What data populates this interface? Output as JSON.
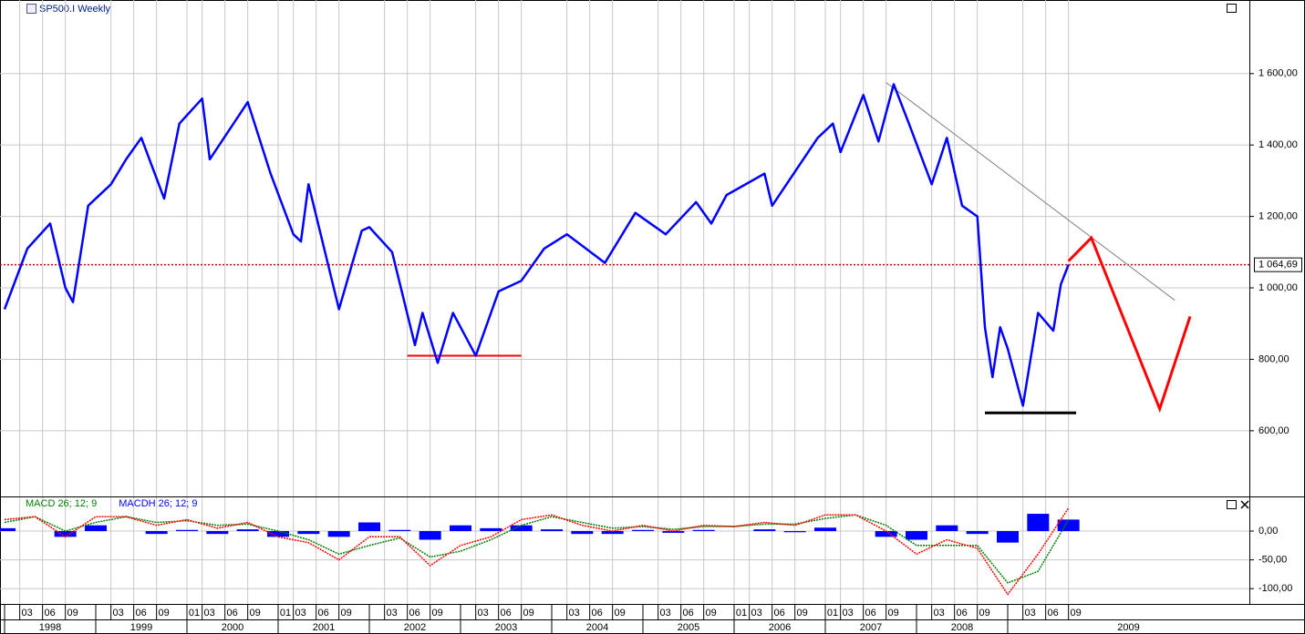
{
  "chart_data": [
    {
      "type": "line",
      "title": "SP500.I Weekly",
      "series": [
        {
          "color": "#0000ff",
          "x": [
            "1998-01",
            "1998-04",
            "1998-07",
            "1998-09",
            "1998-10",
            "1998-12",
            "1999-03",
            "1999-05",
            "1999-07",
            "1999-10",
            "1999-12",
            "2000-03",
            "2000-04",
            "2000-09",
            "2000-12",
            "2001-03",
            "2001-04",
            "2001-05",
            "2001-09",
            "2001-12",
            "2002-01",
            "2002-04",
            "2002-07",
            "2002-08",
            "2002-10",
            "2002-12",
            "2003-03",
            "2003-06",
            "2003-09",
            "2003-12",
            "2004-03",
            "2004-08",
            "2004-12",
            "2005-04",
            "2005-08",
            "2005-10",
            "2005-12",
            "2006-05",
            "2006-06",
            "2006-12",
            "2007-02",
            "2007-03",
            "2007-06",
            "2007-08",
            "2007-10",
            "2007-12",
            "2008-03",
            "2008-05",
            "2008-07",
            "2008-09",
            "2008-10",
            "2008-11",
            "2008-12",
            "2009-01",
            "2009-03",
            "2009-05",
            "2009-07",
            "2009-08",
            "2009-09"
          ],
          "values": [
            940,
            1110,
            1180,
            1000,
            960,
            1230,
            1290,
            1360,
            1420,
            1250,
            1460,
            1530,
            1360,
            1520,
            1320,
            1150,
            1130,
            1290,
            940,
            1160,
            1170,
            1100,
            840,
            930,
            790,
            930,
            810,
            990,
            1020,
            1110,
            1150,
            1070,
            1210,
            1150,
            1240,
            1180,
            1260,
            1320,
            1230,
            1420,
            1460,
            1380,
            1540,
            1410,
            1570,
            1460,
            1290,
            1420,
            1230,
            1200,
            890,
            750,
            890,
            830,
            670,
            930,
            880,
            1010,
            1065
          ]
        }
      ],
      "ylim": [
        416,
        1806
      ],
      "yticks": [
        {
          "value": 600,
          "label": "600,00"
        },
        {
          "value": 800,
          "label": "800,00"
        },
        {
          "value": 1000,
          "label": "1 000,00"
        },
        {
          "value": 1200,
          "label": "1 200,00"
        },
        {
          "value": 1400,
          "label": "1 400,00"
        },
        {
          "value": 1600,
          "label": "1 600,00"
        }
      ],
      "grid": true,
      "price_line": {
        "value": 1064.69,
        "label": "1 064,69",
        "color": "#cc0000"
      },
      "support_lines": [
        {
          "x": [
            "2002-06",
            "2003-09"
          ],
          "value": 810,
          "color": "#ff0000"
        },
        {
          "x": [
            "2008-10",
            "2009-10"
          ],
          "value": 650,
          "color": "#000000"
        }
      ],
      "trendline": {
        "x": [
          "2007-09",
          "2010-11"
        ],
        "values": [
          1575,
          965
        ],
        "color": "#808080"
      },
      "forecast": {
        "x": [
          "2009-09",
          "2009-12",
          "2010-09",
          "2011-01"
        ],
        "values": [
          1075,
          1140,
          661,
          920
        ],
        "color": "#ff0000"
      }
    },
    {
      "type": "macd",
      "x": [
        "1998-01",
        "1998-05",
        "1998-09",
        "1999-01",
        "1999-05",
        "1999-09",
        "2000-01",
        "2000-05",
        "2000-09",
        "2001-01",
        "2001-05",
        "2001-09",
        "2002-01",
        "2002-05",
        "2002-09",
        "2003-01",
        "2003-05",
        "2003-09",
        "2004-01",
        "2004-05",
        "2004-09",
        "2005-01",
        "2005-05",
        "2005-09",
        "2006-01",
        "2006-05",
        "2006-09",
        "2007-01",
        "2007-05",
        "2007-09",
        "2008-01",
        "2008-05",
        "2008-09",
        "2009-01",
        "2009-05",
        "2009-09"
      ],
      "series": [
        {
          "name": "MACD 26; 12; 9",
          "color": "#008000",
          "values": [
            15,
            25,
            0,
            15,
            25,
            15,
            18,
            10,
            12,
            0,
            -15,
            -40,
            -25,
            -12,
            -45,
            -35,
            -15,
            10,
            25,
            15,
            5,
            8,
            3,
            8,
            8,
            12,
            12,
            22,
            28,
            10,
            -25,
            -25,
            -25,
            -90,
            -70,
            20
          ]
        },
        {
          "color": "#ff0000",
          "values": [
            20,
            25,
            -10,
            25,
            25,
            10,
            20,
            5,
            15,
            -10,
            -20,
            -50,
            -10,
            -10,
            -60,
            -25,
            -10,
            20,
            28,
            10,
            0,
            10,
            0,
            10,
            8,
            15,
            10,
            28,
            28,
            0,
            -40,
            -15,
            -30,
            -110,
            -40,
            40
          ]
        },
        {
          "name": "MACDH 26; 12; 9",
          "color": "#0000ff",
          "kind": "histogram",
          "values": [
            5,
            0,
            -10,
            10,
            0,
            -5,
            2,
            -5,
            3,
            -10,
            -5,
            -10,
            15,
            2,
            -15,
            10,
            5,
            10,
            3,
            -5,
            -5,
            2,
            -3,
            2,
            0,
            3,
            -2,
            6,
            0,
            -10,
            -15,
            10,
            -5,
            -20,
            30,
            20
          ]
        }
      ],
      "ylim": [
        -125,
        57
      ],
      "yticks": [
        {
          "value": -100,
          "label": "-100,00"
        },
        {
          "value": -50,
          "label": "-50,00"
        },
        {
          "value": 0,
          "label": "0,00"
        }
      ]
    }
  ],
  "time_axis": {
    "years": [
      1998,
      1999,
      2000,
      2001,
      2002,
      2003,
      2004,
      2005,
      2006,
      2007,
      2008,
      2009
    ],
    "months": [
      {
        "value": "1998-03",
        "label": "03"
      },
      {
        "value": "1998-06",
        "label": "06"
      },
      {
        "value": "1998-09",
        "label": "09"
      },
      {
        "value": "1999-03",
        "label": "03"
      },
      {
        "value": "1999-06",
        "label": "06"
      },
      {
        "value": "1999-09",
        "label": "09"
      },
      {
        "value": "2000-01",
        "label": "01"
      },
      {
        "value": "2000-03",
        "label": "03"
      },
      {
        "value": "2000-06",
        "label": "06"
      },
      {
        "value": "2000-09",
        "label": "09"
      },
      {
        "value": "2001-01",
        "label": "01"
      },
      {
        "value": "2001-03",
        "label": "03"
      },
      {
        "value": "2001-06",
        "label": "06"
      },
      {
        "value": "2001-09",
        "label": "09"
      },
      {
        "value": "2002-03",
        "label": "03"
      },
      {
        "value": "2002-06",
        "label": "06"
      },
      {
        "value": "2002-09",
        "label": "09"
      },
      {
        "value": "2003-03",
        "label": "03"
      },
      {
        "value": "2003-06",
        "label": "06"
      },
      {
        "value": "2003-09",
        "label": "09"
      },
      {
        "value": "2004-03",
        "label": "03"
      },
      {
        "value": "2004-06",
        "label": "06"
      },
      {
        "value": "2004-09",
        "label": "09"
      },
      {
        "value": "2005-03",
        "label": "03"
      },
      {
        "value": "2005-06",
        "label": "06"
      },
      {
        "value": "2005-09",
        "label": "09"
      },
      {
        "value": "2006-01",
        "label": "01"
      },
      {
        "value": "2006-03",
        "label": "03"
      },
      {
        "value": "2006-06",
        "label": "06"
      },
      {
        "value": "2006-09",
        "label": "09"
      },
      {
        "value": "2007-01",
        "label": "01"
      },
      {
        "value": "2007-03",
        "label": "03"
      },
      {
        "value": "2007-06",
        "label": "06"
      },
      {
        "value": "2007-09",
        "label": "09"
      },
      {
        "value": "2008-03",
        "label": "03"
      },
      {
        "value": "2008-06",
        "label": "06"
      },
      {
        "value": "2008-09",
        "label": "09"
      },
      {
        "value": "2009-03",
        "label": "03"
      },
      {
        "value": "2009-06",
        "label": "06"
      },
      {
        "value": "2009-09",
        "label": "09"
      }
    ]
  }
}
